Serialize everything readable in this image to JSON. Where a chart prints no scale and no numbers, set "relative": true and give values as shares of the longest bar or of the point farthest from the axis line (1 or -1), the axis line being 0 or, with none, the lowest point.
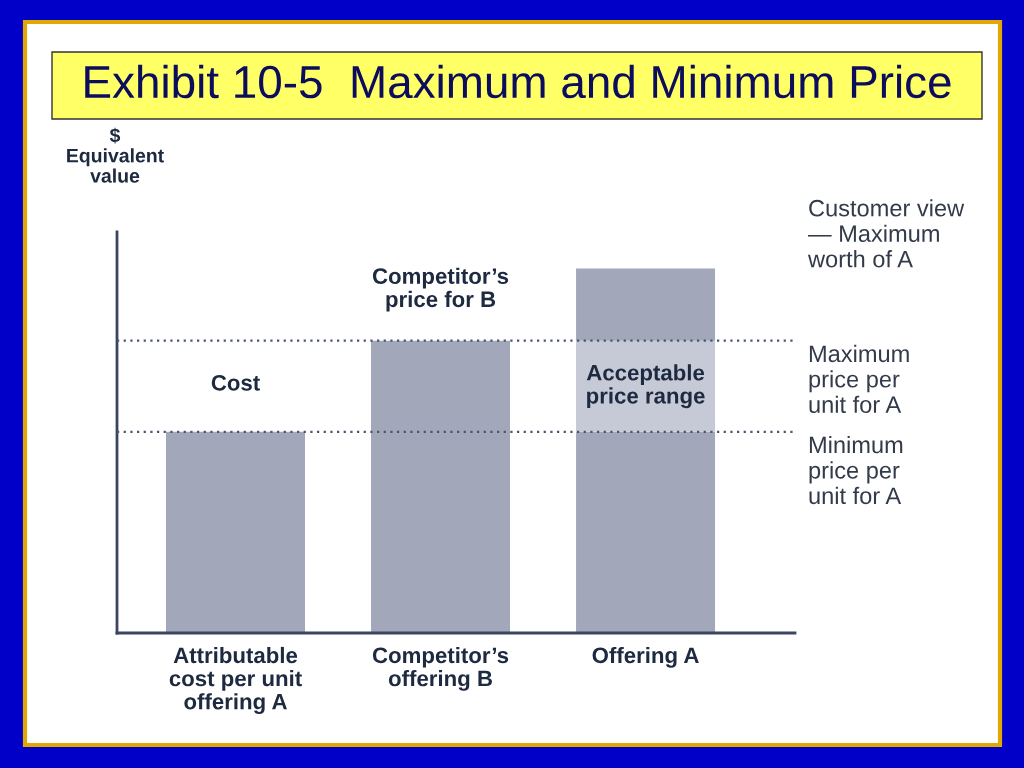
{
  "chart_data": {
    "type": "bar",
    "title": "Exhibit 10-5  Maximum and Minimum Price",
    "ylabel": "$\nEquivalent\nvalue",
    "categories": [
      "Attributable\ncost per unit\noffering A",
      "Competitor’s\noffering B",
      "Offering A"
    ],
    "stacked": true,
    "relative": true,
    "series": [
      {
        "color": "#a2a8ba",
        "values": [
          0.552,
          0.802,
          0.552
        ]
      },
      {
        "color": "#c6cad6",
        "values": [
          null,
          null,
          0.25
        ]
      },
      {
        "color": "#a2a8ba",
        "values": [
          null,
          null,
          0.198
        ]
      }
    ],
    "ref_lines": [
      {
        "axis": "y",
        "value": 0.802,
        "label": "Maximum\nprice per\nunit for A",
        "color": "#4a5570",
        "line_style": "dotted"
      },
      {
        "axis": "y",
        "value": 0.552,
        "label": "Minimum\nprice per\nunit for A",
        "color": "#4a5570",
        "line_style": "dotted"
      }
    ],
    "annotations": [
      "Cost",
      "Competitor’s\nprice for B",
      "Acceptable\nprice range",
      "Customer view\n— Maximum\nworth of A"
    ]
  }
}
